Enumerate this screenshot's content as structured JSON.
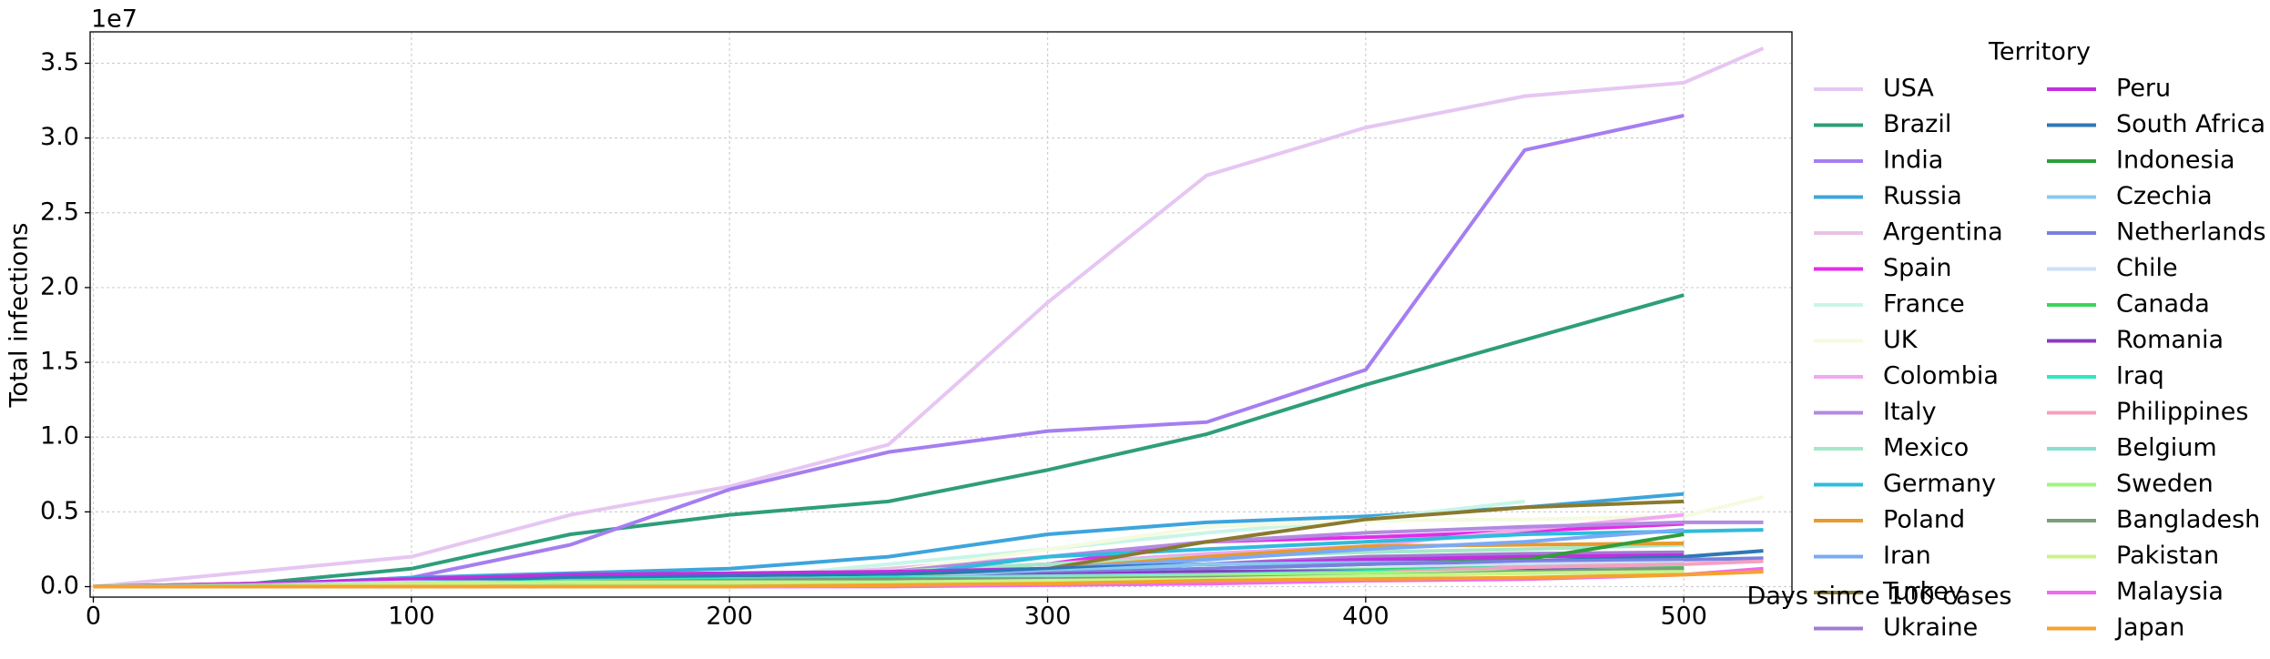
{
  "chart_data": {
    "type": "line",
    "xlabel": "Days since 100 cases",
    "ylabel": "Total infections",
    "y_offset_label": "1e7",
    "legend_title": "Territory",
    "legend": "outside right",
    "grid": true,
    "xlim": [
      -1,
      534
    ],
    "ylim": [
      -0.07,
      3.71
    ],
    "xticks": [
      0,
      100,
      200,
      300,
      400,
      500
    ],
    "yticks": [
      {
        "value": 0,
        "label": "0.0"
      },
      0.5,
      {
        "value": 1,
        "label": "1.0"
      },
      1.5,
      {
        "value": 2,
        "label": "2.0"
      },
      2.5,
      {
        "value": 3,
        "label": "3.0"
      },
      3.5
    ],
    "x": [
      0,
      50,
      100,
      150,
      200,
      250,
      300,
      350,
      400,
      450,
      500,
      525
    ],
    "series": [
      {
        "name": "USA",
        "color": "#e6c6f2",
        "values": [
          0,
          0.1,
          0.2,
          0.48,
          0.67,
          0.95,
          1.9,
          2.75,
          3.07,
          3.28,
          3.37,
          3.6
        ]
      },
      {
        "name": "Brazil",
        "color": "#2e9e7a",
        "values": [
          0,
          0.02,
          0.12,
          0.35,
          0.48,
          0.57,
          0.78,
          1.02,
          1.35,
          1.65,
          1.95,
          null
        ]
      },
      {
        "name": "India",
        "color": "#a57ef0",
        "values": [
          0,
          0.01,
          0.06,
          0.28,
          0.65,
          0.9,
          1.04,
          1.1,
          1.45,
          2.92,
          3.15,
          null
        ]
      },
      {
        "name": "Russia",
        "color": "#3da5dc",
        "values": [
          0,
          0.01,
          0.06,
          0.09,
          0.12,
          0.2,
          0.35,
          0.43,
          0.47,
          0.53,
          0.62,
          null
        ]
      },
      {
        "name": "Argentina",
        "color": "#e8c2e8",
        "values": [
          0,
          0,
          0.01,
          0.02,
          0.05,
          0.12,
          0.2,
          0.25,
          0.3,
          0.38,
          0.48,
          null
        ]
      },
      {
        "name": "Spain",
        "color": "#e22ee8",
        "values": [
          0,
          0.01,
          0.02,
          0.03,
          0.07,
          0.1,
          0.15,
          0.3,
          0.33,
          0.37,
          0.42,
          null
        ]
      },
      {
        "name": "France",
        "color": "#c9f5e8",
        "values": [
          0,
          0.01,
          0.02,
          0.03,
          0.05,
          0.15,
          0.25,
          0.36,
          0.45,
          0.57,
          null,
          null
        ]
      },
      {
        "name": "UK",
        "color": "#f4fbe0",
        "values": [
          0,
          0.02,
          0.03,
          0.03,
          0.05,
          0.1,
          0.25,
          0.4,
          0.44,
          0.45,
          0.47,
          0.6
        ]
      },
      {
        "name": "Colombia",
        "color": "#f0a8f0",
        "values": [
          0,
          0,
          0.01,
          0.03,
          0.07,
          0.1,
          0.15,
          0.22,
          0.27,
          0.38,
          0.48,
          null
        ]
      },
      {
        "name": "Italy",
        "color": "#b38ae0",
        "values": [
          0,
          0.02,
          0.02,
          0.03,
          0.03,
          0.1,
          0.2,
          0.3,
          0.36,
          0.4,
          0.43,
          0.43
        ]
      },
      {
        "name": "Mexico",
        "color": "#a4e8c8",
        "values": [
          0,
          0.01,
          0.03,
          0.05,
          0.07,
          0.1,
          0.15,
          0.2,
          0.23,
          0.25,
          0.28,
          null
        ]
      },
      {
        "name": "Germany",
        "color": "#2ebcdc",
        "values": [
          0,
          0.01,
          0.02,
          0.02,
          0.02,
          0.07,
          0.2,
          0.25,
          0.3,
          0.35,
          0.37,
          0.38
        ]
      },
      {
        "name": "Poland",
        "color": "#e89a2e",
        "values": [
          0,
          0,
          0.01,
          0.01,
          0.01,
          0.05,
          0.12,
          0.2,
          0.27,
          0.28,
          0.29,
          null
        ]
      },
      {
        "name": "Iran",
        "color": "#7aaaf5",
        "values": [
          0,
          0.01,
          0.02,
          0.03,
          0.04,
          0.08,
          0.12,
          0.18,
          0.25,
          0.3,
          0.38,
          null
        ]
      },
      {
        "name": "Turkey",
        "color": "#8a7a2e",
        "values": [
          0,
          0.02,
          0.02,
          0.02,
          0.03,
          0.04,
          0.12,
          0.3,
          0.45,
          0.53,
          0.57,
          null
        ]
      },
      {
        "name": "Ukraine",
        "color": "#a37ad4",
        "values": [
          0,
          0,
          0,
          0.01,
          0.02,
          0.05,
          0.1,
          0.15,
          0.2,
          0.22,
          0.23,
          null
        ]
      },
      {
        "name": "Peru",
        "color": "#c42ee0",
        "values": [
          0,
          0.02,
          0.05,
          0.08,
          0.09,
          0.1,
          0.12,
          0.15,
          0.18,
          0.2,
          0.21,
          null
        ]
      },
      {
        "name": "South Africa",
        "color": "#2e78b4",
        "values": [
          0,
          0,
          0.03,
          0.06,
          0.07,
          0.08,
          0.12,
          0.15,
          0.16,
          0.17,
          0.2,
          0.24
        ]
      },
      {
        "name": "Indonesia",
        "color": "#2e9e3a",
        "values": [
          0,
          0,
          0.01,
          0.02,
          0.03,
          0.06,
          0.09,
          0.12,
          0.15,
          0.18,
          0.35,
          null
        ]
      },
      {
        "name": "Czechia",
        "color": "#88c8f0",
        "values": [
          0,
          0,
          0,
          0,
          0.01,
          0.05,
          0.1,
          0.15,
          0.16,
          0.16,
          0.17,
          null
        ]
      },
      {
        "name": "Netherlands",
        "color": "#7a80e0",
        "values": [
          0,
          0.01,
          0.01,
          0.01,
          0.02,
          0.05,
          0.09,
          0.12,
          0.15,
          0.17,
          0.18,
          0.19
        ]
      },
      {
        "name": "Chile",
        "color": "#cce0f5",
        "values": [
          0,
          0.01,
          0.03,
          0.03,
          0.05,
          0.06,
          0.08,
          0.1,
          0.12,
          0.15,
          0.16,
          null
        ]
      },
      {
        "name": "Canada",
        "color": "#3ad45a",
        "values": [
          0,
          0.01,
          0.01,
          0.01,
          0.02,
          0.03,
          0.07,
          0.1,
          0.11,
          0.13,
          0.14,
          null
        ]
      },
      {
        "name": "Romania",
        "color": "#8a3ac4",
        "values": [
          0,
          0,
          0.01,
          0.01,
          0.02,
          0.05,
          0.08,
          0.1,
          0.1,
          0.11,
          0.11,
          null
        ]
      },
      {
        "name": "Iraq",
        "color": "#2ee8c0",
        "values": [
          0,
          0,
          0.01,
          0.04,
          0.05,
          0.06,
          0.07,
          0.08,
          0.1,
          0.13,
          0.15,
          null
        ]
      },
      {
        "name": "Philippines",
        "color": "#f5a0c0",
        "values": [
          0,
          0,
          0.01,
          0.02,
          0.04,
          0.05,
          0.06,
          0.07,
          0.09,
          0.13,
          0.15,
          0.17
        ]
      },
      {
        "name": "Belgium",
        "color": "#88e0d0",
        "values": [
          0,
          0.01,
          0.01,
          0.01,
          0.02,
          0.05,
          0.07,
          0.08,
          0.09,
          0.1,
          0.11,
          null
        ]
      },
      {
        "name": "Sweden",
        "color": "#a0f580",
        "values": [
          0,
          0,
          0.01,
          0.01,
          0.01,
          0.02,
          0.05,
          0.07,
          0.09,
          0.1,
          0.11,
          null
        ]
      },
      {
        "name": "Bangladesh",
        "color": "#7a9e7a",
        "values": [
          0,
          0,
          0.02,
          0.03,
          0.04,
          0.05,
          0.05,
          0.06,
          0.07,
          0.1,
          0.12,
          null
        ]
      },
      {
        "name": "Pakistan",
        "color": "#c8f588",
        "values": [
          0,
          0,
          0.02,
          0.03,
          0.03,
          0.03,
          0.04,
          0.05,
          0.07,
          0.09,
          0.1,
          null
        ]
      },
      {
        "name": "Malaysia",
        "color": "#f06af0",
        "values": [
          0,
          0,
          0,
          0,
          0,
          0.001,
          0.01,
          0.02,
          0.04,
          0.05,
          0.08,
          0.12
        ]
      },
      {
        "name": "Japan",
        "color": "#f5a22e",
        "values": [
          0,
          0,
          0,
          0,
          0,
          0.01,
          0.02,
          0.04,
          0.05,
          0.06,
          0.08,
          0.1
        ]
      }
    ]
  }
}
